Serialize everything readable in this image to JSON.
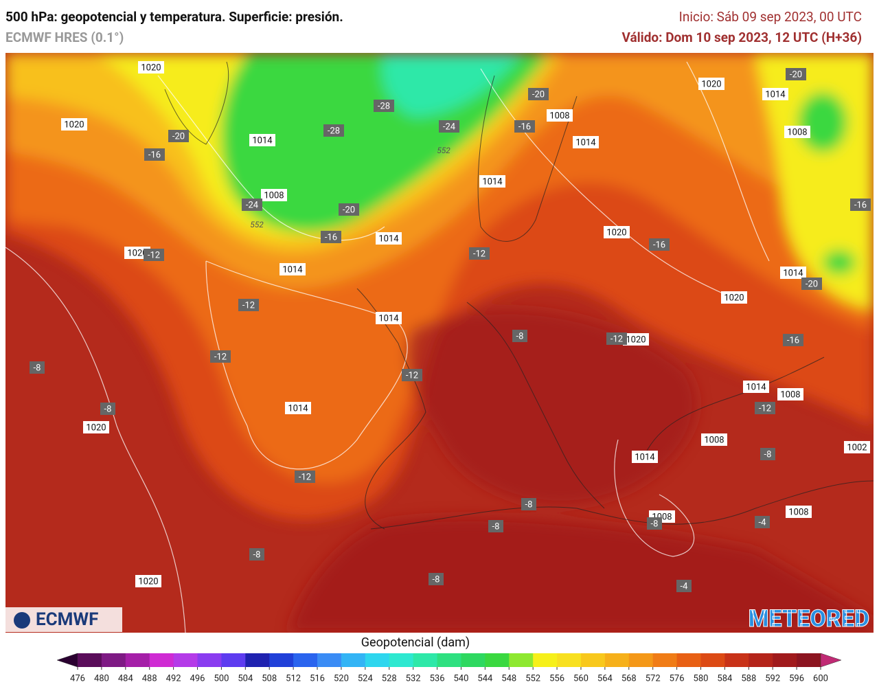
{
  "header": {
    "title": "500 hPa: geopotencial y temperatura. Superficie: presión.",
    "model": "ECMWF HRES (0.1°)",
    "init": "Inicio: Sáb 09 sep 2023, 00 UTC",
    "valid": "Válido: Dom 10 sep 2023, 12 UTC (H+36)"
  },
  "map": {
    "pressure_labels": [
      "1020",
      "1020",
      "1014",
      "1008",
      "1014",
      "1014",
      "1014",
      "1014",
      "1008",
      "1014",
      "1020",
      "1014",
      "1008",
      "1020",
      "1014",
      "1020",
      "1020",
      "1014",
      "1008",
      "1008",
      "1014",
      "1002",
      "1008",
      "1008",
      "1014",
      "1020",
      "1020",
      "1020"
    ],
    "temperature_labels": [
      "-20",
      "-16",
      "-28",
      "-28",
      "-24",
      "-24",
      "-20",
      "-16",
      "-20",
      "-16",
      "-20",
      "-16",
      "-12",
      "-12",
      "-12",
      "-8",
      "-8",
      "-12",
      "-12",
      "-12",
      "-16",
      "-8",
      "-12",
      "-16",
      "-20",
      "-12",
      "-8",
      "-8",
      "-8",
      "-8",
      "-4",
      "-4",
      "-8",
      "-8"
    ],
    "contour_labels": [
      "552",
      "552"
    ],
    "logo_left": "ECMWF",
    "logo_right": "METEORED"
  },
  "colorbar": {
    "title": "Geopotencial (dam)",
    "ticks": [
      476,
      480,
      484,
      488,
      492,
      496,
      500,
      504,
      508,
      512,
      516,
      520,
      524,
      528,
      532,
      536,
      540,
      544,
      548,
      552,
      556,
      560,
      564,
      568,
      572,
      576,
      580,
      584,
      588,
      592,
      596,
      600
    ],
    "colors": [
      "#2a0030",
      "#5a0d5a",
      "#7e1a84",
      "#a51fa8",
      "#cf2bd3",
      "#b43be8",
      "#8a3cf0",
      "#5e3cf0",
      "#1f22b0",
      "#2040d8",
      "#2a64ee",
      "#3a8cf5",
      "#33b4f5",
      "#2ed6ee",
      "#2ee8d0",
      "#2ee8a8",
      "#2ee080",
      "#2ed860",
      "#3ad840",
      "#8ee830",
      "#f6f01a",
      "#f8e020",
      "#f8c81c",
      "#f6b01a",
      "#f49818",
      "#f07c16",
      "#e86014",
      "#dc4a14",
      "#c83218",
      "#b4241a",
      "#a01a1c",
      "#8c1420",
      "#c02a74"
    ]
  }
}
